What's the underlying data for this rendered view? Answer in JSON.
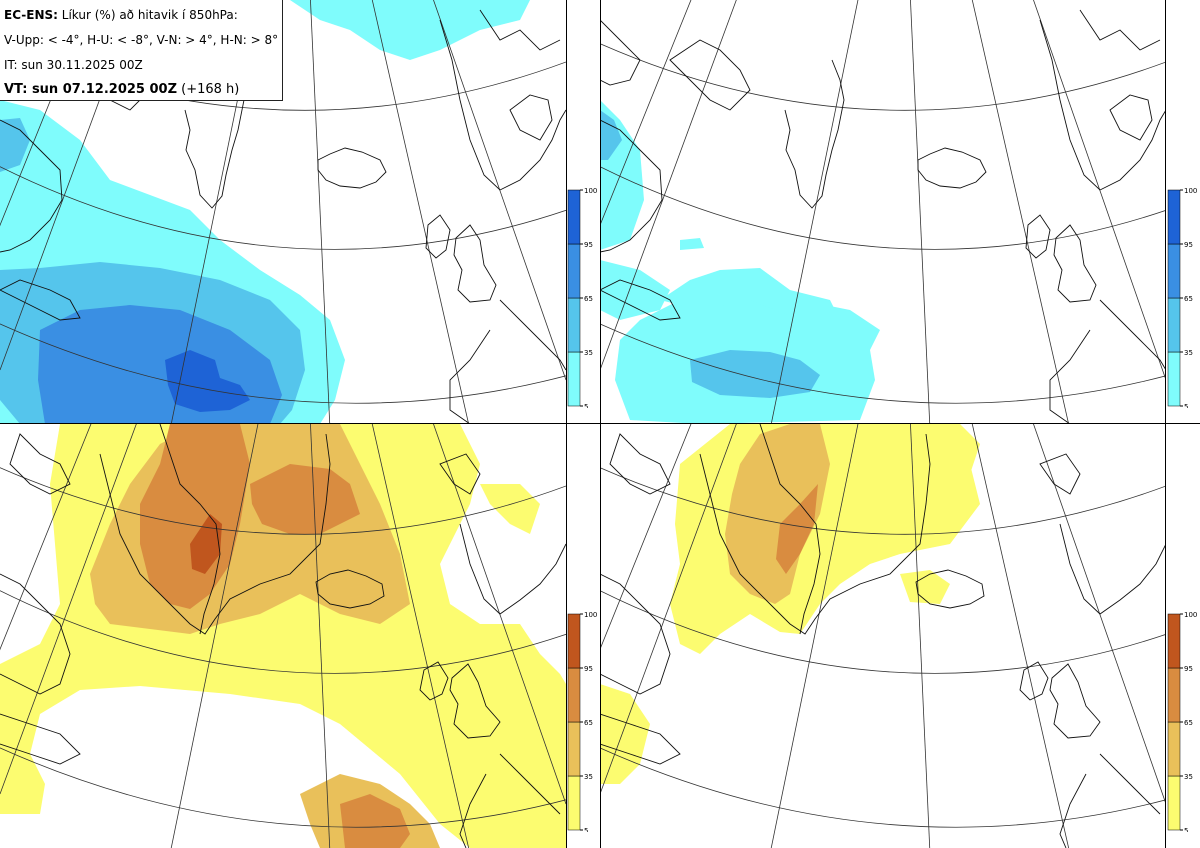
{
  "header": {
    "model": "EC-ENS:",
    "title": "Líkur (%) að hitavik í 850hPa:",
    "legend_line": "V-Upp: < -4°, H-U: < -8°, V-N: > 4°, H-N: > 8°",
    "init_time": "IT: sun 30.11.2025 00Z",
    "valid_prefix": "VT: sun 07.12.2025 00Z",
    "lead_time": "(+168 h)"
  },
  "colorbar": {
    "ticks": [
      "100",
      "95",
      "65",
      "35",
      "5"
    ],
    "cold_colors": [
      "#7ffcfc",
      "#55c5ec",
      "#3a8fe3",
      "#1e63d6"
    ],
    "warm_colors": [
      "#fcfc70",
      "#e9c05a",
      "#d98c40",
      "#c0561e"
    ]
  },
  "panels": [
    {
      "name": "V-Upp",
      "threshold": "< -4°",
      "scheme": "cold"
    },
    {
      "name": "H-U",
      "threshold": "< -8°",
      "scheme": "cold"
    },
    {
      "name": "V-N",
      "threshold": "> 4°",
      "scheme": "warm"
    },
    {
      "name": "H-N",
      "threshold": "> 8°",
      "scheme": "warm"
    }
  ]
}
